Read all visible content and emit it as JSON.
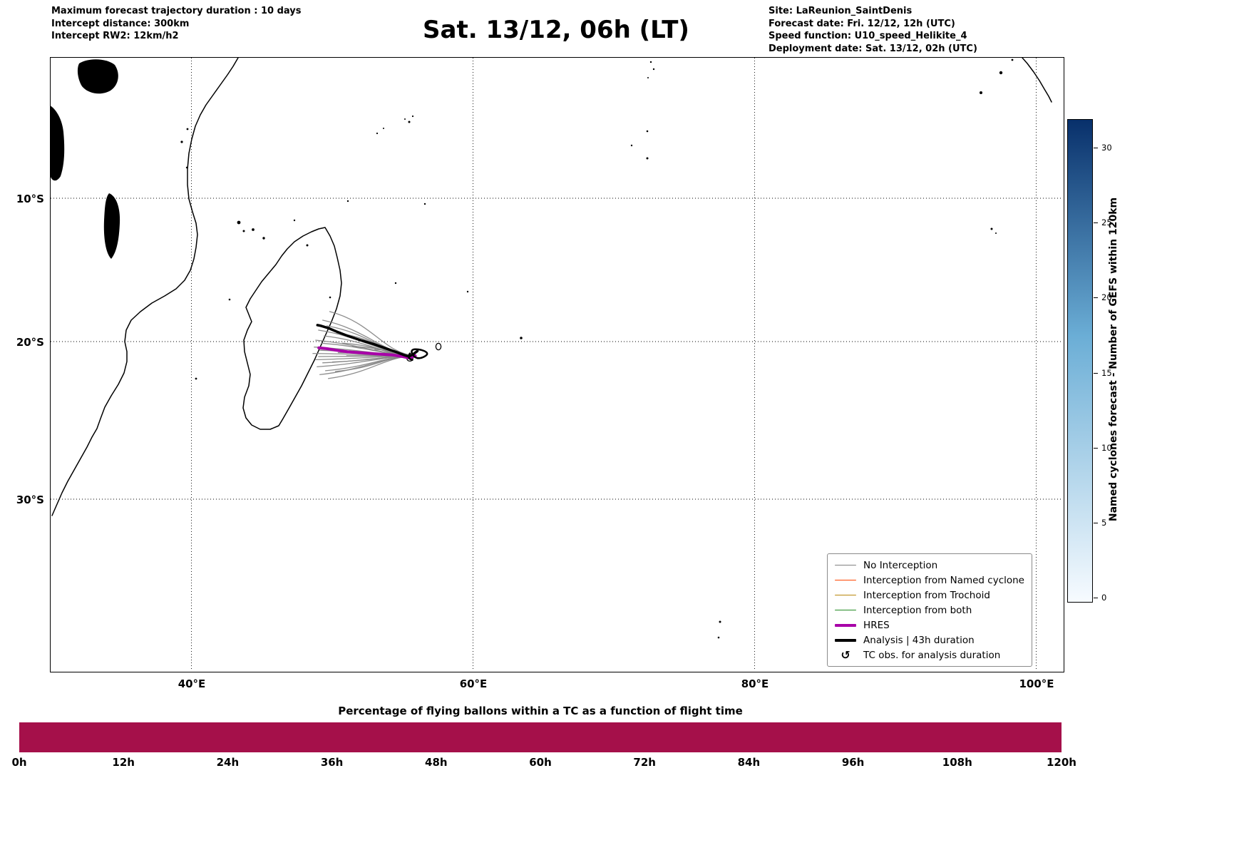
{
  "header": {
    "left_lines": [
      "Maximum forecast trajectory duration : 10 days",
      "Intercept distance: 300km",
      "Intercept RW2: 12km/h2"
    ],
    "title": "Sat. 13/12, 06h (LT)",
    "right_lines": [
      "Site: LaReunion_SaintDenis",
      "Forecast date: Fri. 12/12, 12h (UTC)",
      "Speed function: U10_speed_Helikite_4",
      "Deployment date: Sat. 13/12, 02h (UTC)"
    ]
  },
  "map": {
    "x_ticks": [
      {
        "value": 40,
        "label": "40°E"
      },
      {
        "value": 60,
        "label": "60°E"
      },
      {
        "value": 80,
        "label": "80°E"
      },
      {
        "value": 100,
        "label": "100°E"
      }
    ],
    "y_ticks": [
      {
        "value": -10,
        "label": "10°S"
      },
      {
        "value": -20,
        "label": "20°S"
      },
      {
        "value": -30,
        "label": "30°S"
      }
    ],
    "legend_items": [
      {
        "label": "No Interception",
        "color": "#808080",
        "lw": 1.5
      },
      {
        "label": "Interception from Named cyclone",
        "color": "#ff4500",
        "lw": 1.5
      },
      {
        "label": "Interception from Trochoid",
        "color": "#b8860b",
        "lw": 1.5
      },
      {
        "label": "Interception from both",
        "color": "#228b22",
        "lw": 1.5
      },
      {
        "label": "HRES",
        "color": "#a800a8",
        "lw": 4
      },
      {
        "label": "Analysis | 43h duration",
        "color": "#000000",
        "lw": 4
      },
      {
        "label": "TC obs. for analysis duration",
        "symbol": "↺"
      }
    ]
  },
  "colorbar": {
    "label": "Named cyclones forecast - Number of GEFS within 120km",
    "ticks": [
      0,
      5,
      10,
      15,
      20,
      25,
      30
    ],
    "color_min": "#f7fbff",
    "color_mid": "#6baed6",
    "color_max": "#08306b"
  },
  "bottom_chart": {
    "title": "Percentage of flying ballons within a TC as a function of flight time",
    "bar_color": "#a5104a",
    "ticks": [
      {
        "hour": 0,
        "label": "0h"
      },
      {
        "hour": 12,
        "label": "12h"
      },
      {
        "hour": 24,
        "label": "24h"
      },
      {
        "hour": 36,
        "label": "36h"
      },
      {
        "hour": 48,
        "label": "48h"
      },
      {
        "hour": 60,
        "label": "60h"
      },
      {
        "hour": 72,
        "label": "72h"
      },
      {
        "hour": 84,
        "label": "84h"
      },
      {
        "hour": 96,
        "label": "96h"
      },
      {
        "hour": 108,
        "label": "108h"
      },
      {
        "hour": 120,
        "label": "120h"
      }
    ]
  },
  "chart_data": {
    "type": "trajectory-map",
    "map_extent": {
      "lon_min": 30,
      "lon_max": 101.9,
      "lat_min": -41,
      "lat_max": -0.2
    },
    "gridlines": {
      "lon": [
        40,
        60,
        80,
        100
      ],
      "lat": [
        -10,
        -20,
        -30
      ]
    },
    "deployment_site": {
      "name": "LaReunion_SaintDenis",
      "lon": 55.9,
      "lat": -20.9
    },
    "trajectories": {
      "start": [
        55.9,
        -20.9
      ],
      "ensemble": {
        "label": "No Interception",
        "color": "#878787",
        "endpoints": [
          [
            49.8,
            -17.9
          ],
          [
            49.3,
            -18.5
          ],
          [
            49.6,
            -18.9
          ],
          [
            49.0,
            -19.2
          ],
          [
            49.4,
            -19.6
          ],
          [
            48.8,
            -19.9
          ],
          [
            49.2,
            -20.1
          ],
          [
            48.7,
            -20.35
          ],
          [
            49.1,
            -20.55
          ],
          [
            48.6,
            -20.75
          ],
          [
            49.0,
            -20.95
          ],
          [
            48.8,
            -21.15
          ],
          [
            49.3,
            -21.35
          ],
          [
            48.9,
            -21.6
          ],
          [
            49.5,
            -21.85
          ],
          [
            49.1,
            -22.1
          ],
          [
            49.7,
            -22.35
          ],
          [
            50.2,
            -21.9
          ],
          [
            50.0,
            -21.3
          ],
          [
            50.4,
            -20.7
          ],
          [
            50.7,
            -20.1
          ],
          [
            50.3,
            -19.4
          ],
          [
            51.0,
            -20.9
          ],
          [
            51.4,
            -20.3
          ],
          [
            52.2,
            -20.7
          ],
          [
            53.0,
            -20.5
          ]
        ]
      },
      "hres": {
        "label": "HRES",
        "color": "#a800a8",
        "points": [
          [
            55.9,
            -20.9
          ],
          [
            55.5,
            -21.05
          ],
          [
            55.0,
            -20.95
          ],
          [
            54.3,
            -20.85
          ],
          [
            53.5,
            -20.8
          ],
          [
            52.7,
            -20.75
          ],
          [
            51.9,
            -20.7
          ],
          [
            51.1,
            -20.65
          ],
          [
            50.3,
            -20.55
          ],
          [
            49.6,
            -20.45
          ],
          [
            49.05,
            -20.4
          ]
        ]
      },
      "analysis": {
        "label": "Analysis | 43h duration",
        "color": "#000000",
        "points": [
          [
            56.05,
            -20.6
          ],
          [
            55.75,
            -20.8
          ],
          [
            55.45,
            -20.95
          ],
          [
            55.1,
            -20.85
          ],
          [
            54.5,
            -20.65
          ],
          [
            53.7,
            -20.4
          ],
          [
            52.9,
            -20.15
          ],
          [
            52.0,
            -19.9
          ],
          [
            51.1,
            -19.6
          ],
          [
            50.3,
            -19.3
          ],
          [
            49.7,
            -19.05
          ],
          [
            49.2,
            -18.9
          ],
          [
            48.95,
            -18.85
          ]
        ]
      }
    },
    "colorbar": {
      "colormap": "Blues",
      "range": [
        0,
        32
      ],
      "ticks": [
        0,
        5,
        10,
        15,
        20,
        25,
        30
      ],
      "label": "Named cyclones forecast - Number of GEFS within 120km"
    },
    "bottom_strip": {
      "type": "bar",
      "title": "Percentage of flying ballons within a TC as a function of flight time",
      "x_range_hours": [
        0,
        120
      ],
      "x_tick_hours": [
        0,
        12,
        24,
        36,
        48,
        60,
        72,
        84,
        96,
        108,
        120
      ],
      "fill": "uniform-full-height",
      "color": "#a5104a"
    }
  }
}
